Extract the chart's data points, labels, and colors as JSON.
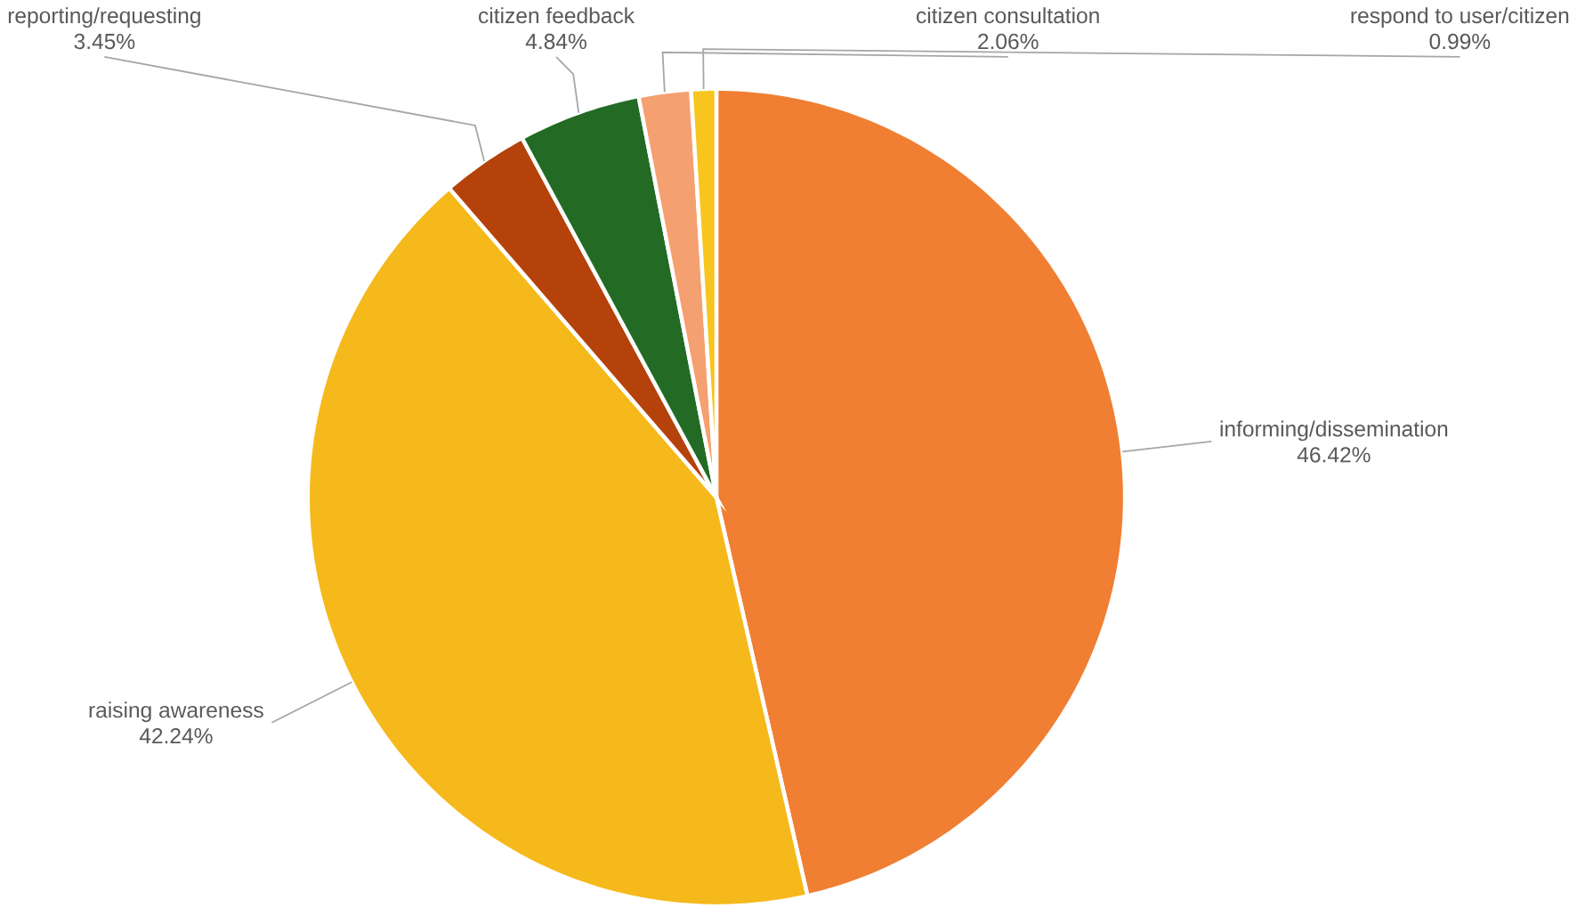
{
  "chart_data": {
    "type": "pie",
    "categories": [
      "informing/dissemination",
      "raising awareness",
      "reporting/requesting",
      "citizen feedback",
      "citizen consultation",
      "respond to user/citizen"
    ],
    "values": [
      46.42,
      42.24,
      3.45,
      4.84,
      2.06,
      0.99
    ],
    "value_labels": [
      "46.42%",
      "42.24%",
      "3.45%",
      "4.84%",
      "2.06%",
      "0.99%"
    ],
    "colors": [
      "#f07f33",
      "#f5b91b",
      "#b5420a",
      "#236b25",
      "#f5a070",
      "#f8c51e"
    ]
  }
}
